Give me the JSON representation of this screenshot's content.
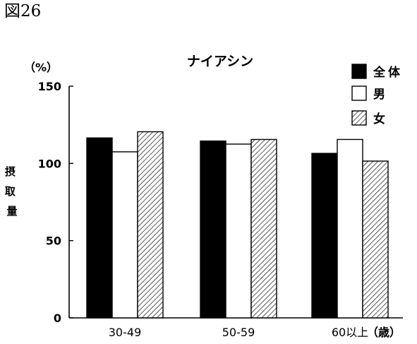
{
  "figure_label": "図26",
  "chart_data": {
    "type": "bar",
    "title": "ナイアシン",
    "unit_label": "（%）",
    "ylabel": "摂取量",
    "ylim": [
      0,
      150
    ],
    "yticks": [
      0,
      50,
      100,
      150
    ],
    "categories": [
      "30-49",
      "50-59",
      "60以上"
    ],
    "xlabel_unit": "（歳）",
    "series": [
      {
        "name": "全体",
        "values": [
          116.5,
          114.5,
          106.5
        ],
        "fill": "solid",
        "color": "#000000"
      },
      {
        "name": "男",
        "values": [
          107.5,
          112.5,
          115.5
        ],
        "fill": "none",
        "color": "#ffffff"
      },
      {
        "name": "女",
        "values": [
          120.5,
          115.5,
          101.5
        ],
        "fill": "hatched",
        "color": "#000000"
      }
    ],
    "legend_position": "top-right",
    "grid": false
  }
}
